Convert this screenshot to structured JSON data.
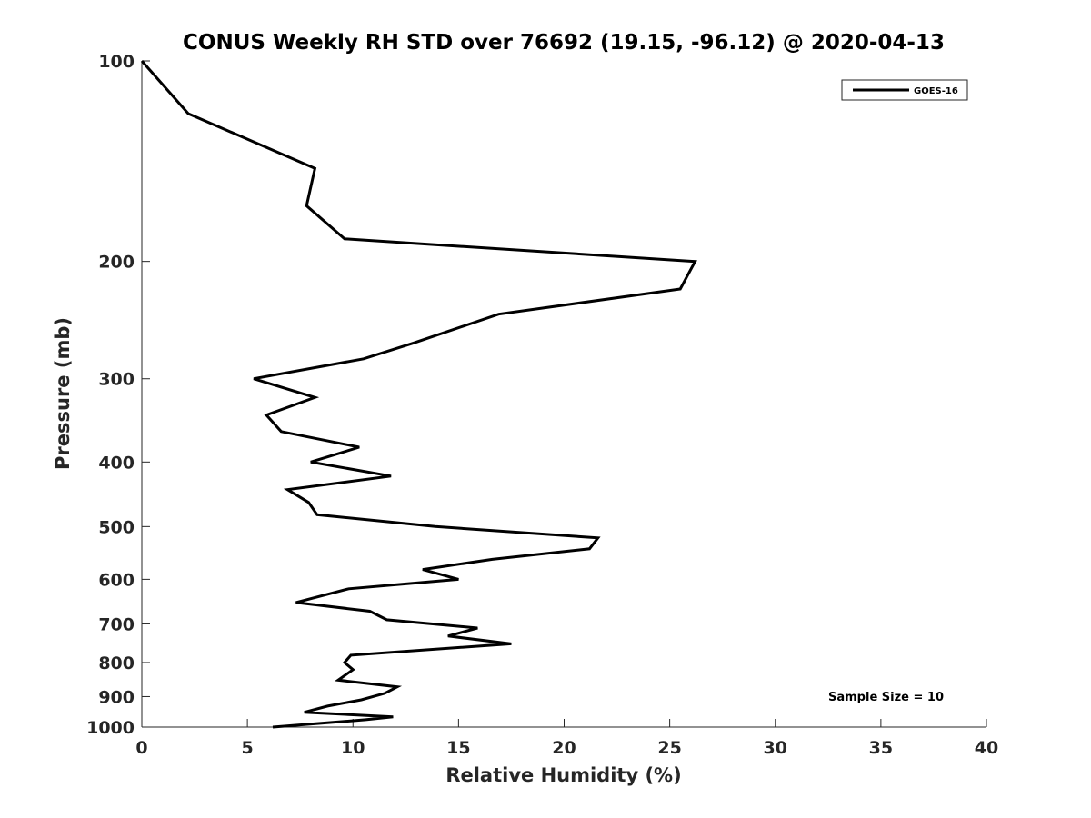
{
  "chart_data": {
    "type": "line",
    "title": "CONUS Weekly RH STD over 76692 (19.15, -96.12) @ 2020-04-13",
    "xlabel": "Relative Humidity (%)",
    "ylabel": "Pressure (mb)",
    "xlim": [
      0,
      40
    ],
    "ylim": [
      100,
      1000
    ],
    "y_scale": "log",
    "y_reversed": true,
    "x_ticks": [
      "0",
      "5",
      "10",
      "15",
      "20",
      "25",
      "30",
      "35",
      "40"
    ],
    "y_ticks": [
      "100",
      "200",
      "300",
      "400",
      "500",
      "600",
      "700",
      "800",
      "900",
      "1000"
    ],
    "legend_position": "top-right",
    "grid": false,
    "annotation": "Sample Size = 10",
    "series": [
      {
        "name": "GOES-16",
        "color": "#000000",
        "points": [
          [
            0.0,
            100
          ],
          [
            2.2,
            120
          ],
          [
            8.2,
            145
          ],
          [
            7.8,
            165
          ],
          [
            9.6,
            185
          ],
          [
            26.2,
            200
          ],
          [
            25.5,
            220
          ],
          [
            16.9,
            240
          ],
          [
            12.9,
            265
          ],
          [
            10.5,
            280
          ],
          [
            5.3,
            300
          ],
          [
            8.2,
            320
          ],
          [
            5.9,
            340
          ],
          [
            6.6,
            360
          ],
          [
            10.3,
            380
          ],
          [
            8.0,
            400
          ],
          [
            11.8,
            420
          ],
          [
            6.9,
            440
          ],
          [
            7.9,
            460
          ],
          [
            8.3,
            480
          ],
          [
            13.9,
            500
          ],
          [
            21.6,
            520
          ],
          [
            21.2,
            540
          ],
          [
            16.6,
            560
          ],
          [
            13.3,
            580
          ],
          [
            15.0,
            600
          ],
          [
            9.8,
            620
          ],
          [
            7.3,
            650
          ],
          [
            10.8,
            670
          ],
          [
            11.6,
            690
          ],
          [
            15.9,
            710
          ],
          [
            14.5,
            730
          ],
          [
            17.5,
            750
          ],
          [
            9.9,
            780
          ],
          [
            9.6,
            800
          ],
          [
            10.0,
            820
          ],
          [
            9.3,
            850
          ],
          [
            12.1,
            870
          ],
          [
            11.5,
            890
          ],
          [
            10.4,
            910
          ],
          [
            8.8,
            930
          ],
          [
            7.7,
            950
          ],
          [
            11.9,
            965
          ],
          [
            10.6,
            975
          ],
          [
            6.2,
            1000
          ]
        ]
      }
    ]
  }
}
